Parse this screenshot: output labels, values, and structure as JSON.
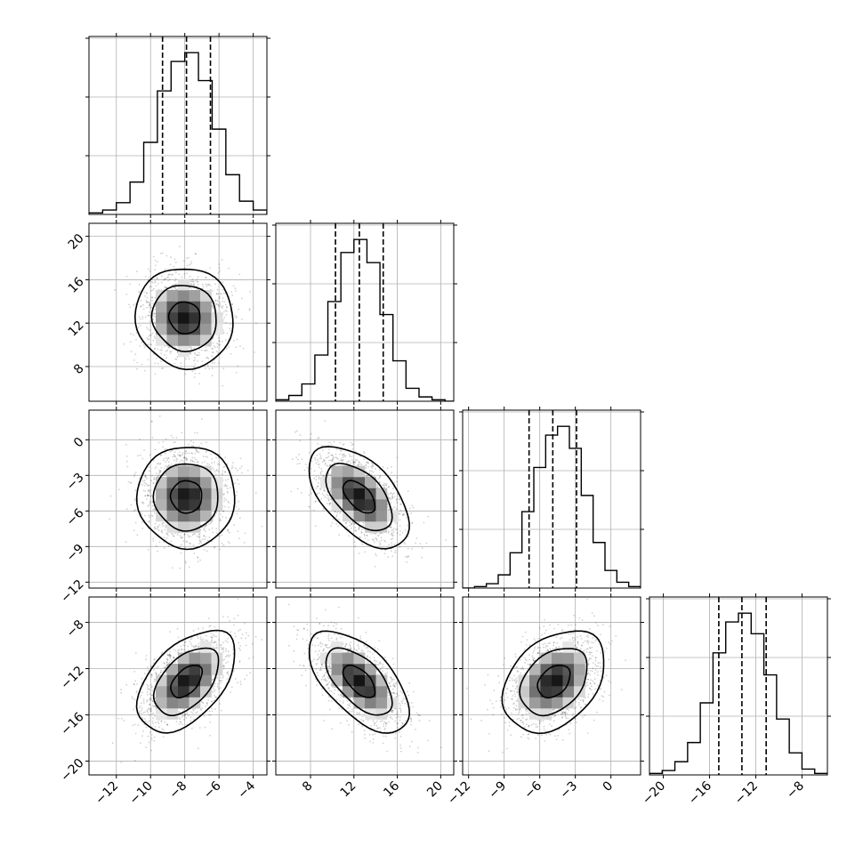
{
  "chart_data": {
    "type": "corner",
    "grid": true,
    "quantiles": [
      0.16,
      0.5,
      0.84
    ],
    "contour_levels": 3,
    "parameters": [
      {
        "range": [
          -13.6,
          -3.2
        ],
        "ticks": [
          -12,
          -10,
          -8,
          -6,
          -4
        ],
        "tick_labels": [
          "−12",
          "−10",
          "−8",
          "−6",
          "−4"
        ],
        "quantiles": [
          -9.3,
          -7.9,
          -6.5
        ]
      },
      {
        "range": [
          4.8,
          21.2
        ],
        "ticks": [
          8,
          12,
          16,
          20
        ],
        "tick_labels": [
          "8",
          "12",
          "16",
          "20"
        ],
        "quantiles": [
          10.3,
          12.5,
          14.7
        ]
      },
      {
        "range": [
          -12.5,
          2.5
        ],
        "ticks": [
          -12,
          -9,
          -6,
          -3,
          0
        ],
        "tick_labels": [
          "−12",
          "−9",
          "−6",
          "−3",
          "0"
        ],
        "quantiles": [
          -6.9,
          -4.9,
          -2.9
        ]
      },
      {
        "range": [
          -21.2,
          -5.8
        ],
        "ticks": [
          -20,
          -16,
          -12,
          -8
        ],
        "tick_labels": [
          "−20",
          "−16",
          "−12",
          "−8"
        ],
        "quantiles": [
          -15.2,
          -13.2,
          -11.1
        ]
      }
    ],
    "marginal_histograms": [
      {
        "param": 0,
        "bin_edges": [
          -13.6,
          -12.8,
          -12.0,
          -11.2,
          -10.4,
          -9.6,
          -8.8,
          -8.0,
          -7.2,
          -6.4,
          -5.6,
          -4.8,
          -4.0,
          -3.2
        ],
        "counts": [
          1,
          3,
          8,
          22,
          49,
          84,
          104,
          110,
          91,
          58,
          27,
          9,
          3
        ]
      },
      {
        "param": 1,
        "bin_edges": [
          4.8,
          6.0,
          7.2,
          8.4,
          9.6,
          10.8,
          12.0,
          13.2,
          14.4,
          15.6,
          16.8,
          18.0,
          19.2,
          20.4,
          21.2
        ],
        "counts": [
          1,
          4,
          12,
          32,
          69,
          103,
          112,
          96,
          60,
          28,
          9,
          3,
          1,
          0
        ]
      },
      {
        "param": 2,
        "bin_edges": [
          -12.5,
          -11.5,
          -10.5,
          -9.5,
          -8.5,
          -7.5,
          -6.5,
          -5.5,
          -4.5,
          -3.5,
          -2.5,
          -1.5,
          -0.5,
          0.5,
          1.5,
          2.5
        ],
        "counts": [
          0,
          1,
          3,
          9,
          24,
          52,
          82,
          104,
          110,
          95,
          63,
          31,
          12,
          4,
          1
        ]
      },
      {
        "param": 3,
        "bin_edges": [
          -21.2,
          -20.1,
          -19.0,
          -17.9,
          -16.8,
          -15.7,
          -14.6,
          -13.5,
          -12.4,
          -11.3,
          -10.2,
          -9.1,
          -8.0,
          -6.9,
          -5.8
        ],
        "counts": [
          1,
          3,
          9,
          22,
          49,
          83,
          104,
          110,
          96,
          68,
          38,
          15,
          4,
          1
        ]
      }
    ],
    "pairs": [
      {
        "x": 0,
        "y": 1,
        "center": [
          -8.0,
          12.5
        ],
        "sd": [
          1.3,
          2.1
        ],
        "rho": -0.05,
        "levels": [
          [
            0.7,
            0.75
          ],
          [
            1.45,
            1.5
          ],
          [
            2.2,
            2.3
          ]
        ]
      },
      {
        "x": 0,
        "y": 2,
        "center": [
          -7.9,
          -4.8
        ],
        "sd": [
          1.3,
          1.95
        ],
        "rho": 0.0,
        "levels": [
          [
            0.7,
            0.75
          ],
          [
            1.45,
            1.5
          ],
          [
            2.2,
            2.3
          ]
        ]
      },
      {
        "x": 1,
        "y": 2,
        "center": [
          12.5,
          -4.8
        ],
        "sd": [
          2.1,
          1.95
        ],
        "rho": -0.55,
        "levels": [
          [
            0.7,
            0.75
          ],
          [
            1.45,
            1.5
          ],
          [
            2.2,
            2.3
          ]
        ]
      },
      {
        "x": 0,
        "y": 3,
        "center": [
          -7.9,
          -13.1
        ],
        "sd": [
          1.3,
          2.0
        ],
        "rho": 0.5,
        "levels": [
          [
            0.7,
            0.75
          ],
          [
            1.45,
            1.5
          ],
          [
            2.2,
            2.3
          ]
        ]
      },
      {
        "x": 1,
        "y": 3,
        "center": [
          12.5,
          -13.1
        ],
        "sd": [
          2.1,
          2.0
        ],
        "rho": -0.6,
        "levels": [
          [
            0.7,
            0.75
          ],
          [
            1.45,
            1.5
          ],
          [
            2.2,
            2.3
          ]
        ]
      },
      {
        "x": 2,
        "y": 3,
        "center": [
          -4.8,
          -13.1
        ],
        "sd": [
          1.95,
          2.0
        ],
        "rho": 0.35,
        "levels": [
          [
            0.7,
            0.75
          ],
          [
            1.45,
            1.5
          ],
          [
            2.2,
            2.3
          ]
        ]
      }
    ],
    "colors": {
      "line": "#000000",
      "grid": "#b0b0b0",
      "scatter": "#000000",
      "frame": "#000000"
    }
  }
}
